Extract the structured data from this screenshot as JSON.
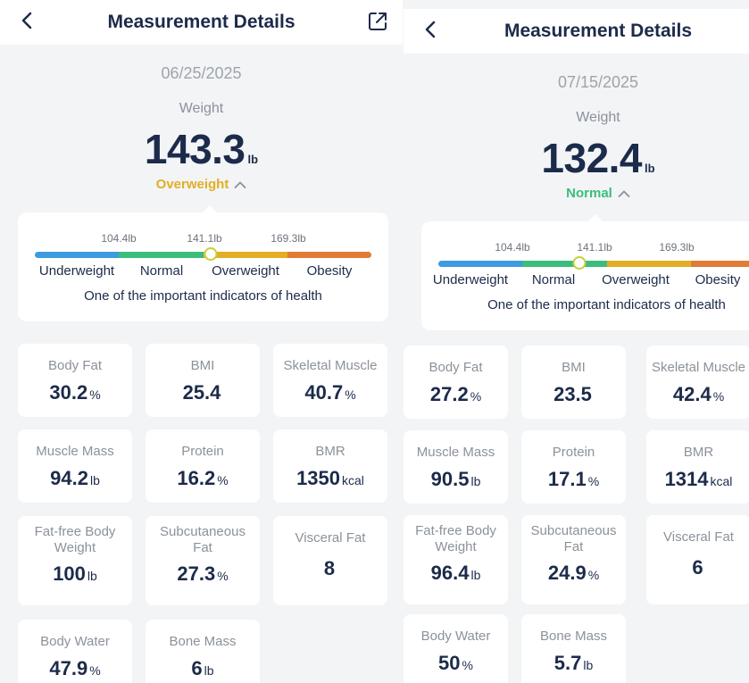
{
  "screens": [
    {
      "header": {
        "title": "Measurement Details",
        "back_icon": "chevron-left-icon",
        "share_icon": "external-link-icon"
      },
      "date": "06/25/2025",
      "weight": {
        "label": "Weight",
        "value": "143.3",
        "unit": "lb"
      },
      "status": {
        "label": "Overweight",
        "color": "#e3ae25",
        "icon": "chevron-up-icon"
      },
      "scale": {
        "thresholds": [
          "104.4lb",
          "141.1lb",
          "169.3lb"
        ],
        "categories": [
          "Underweight",
          "Normal",
          "Overweight",
          "Obesity"
        ],
        "colors": [
          "#3d9be0",
          "#3cbd7c",
          "#e3ae25",
          "#e07c36"
        ],
        "position": 0.523,
        "hint": "One of the important indicators of health"
      },
      "metrics": [
        {
          "label": "Body Fat",
          "value": "30.2",
          "unit": "%"
        },
        {
          "label": "BMI",
          "value": "25.4",
          "unit": ""
        },
        {
          "label": "Skeletal Muscle",
          "value": "40.7",
          "unit": "%"
        },
        {
          "label": "Muscle Mass",
          "value": "94.2",
          "unit": "lb"
        },
        {
          "label": "Protein",
          "value": "16.2",
          "unit": "%"
        },
        {
          "label": "BMR",
          "value": "1350",
          "unit": "kcal"
        },
        {
          "label": "Fat-free Body\nWeight",
          "value": "100",
          "unit": "lb"
        },
        {
          "label": "Subcutaneous\nFat",
          "value": "27.3",
          "unit": "%"
        },
        {
          "label": "Visceral Fat",
          "value": "8",
          "unit": ""
        },
        {
          "label": "Body Water",
          "value": "47.9",
          "unit": "%"
        },
        {
          "label": "Bone Mass",
          "value": "6",
          "unit": "lb"
        }
      ]
    },
    {
      "header": {
        "title": "Measurement Details",
        "back_icon": "chevron-left-icon",
        "share_icon": "external-link-icon"
      },
      "date": "07/15/2025",
      "weight": {
        "label": "Weight",
        "value": "132.4",
        "unit": "lb"
      },
      "status": {
        "label": "Normal",
        "color": "#3cbd7c",
        "icon": "chevron-up-icon"
      },
      "scale": {
        "thresholds": [
          "104.4lb",
          "141.1lb",
          "169.3lb"
        ],
        "categories": [
          "Underweight",
          "Normal",
          "Overweight",
          "Obesity"
        ],
        "colors": [
          "#3d9be0",
          "#3cbd7c",
          "#e3ae25",
          "#e07c36"
        ],
        "position": 0.42,
        "hint": "One of the important indicators of health"
      },
      "metrics": [
        {
          "label": "Body Fat",
          "value": "27.2",
          "unit": "%"
        },
        {
          "label": "BMI",
          "value": "23.5",
          "unit": ""
        },
        {
          "label": "Skeletal Muscle",
          "value": "42.4",
          "unit": "%"
        },
        {
          "label": "Muscle Mass",
          "value": "90.5",
          "unit": "lb"
        },
        {
          "label": "Protein",
          "value": "17.1",
          "unit": "%"
        },
        {
          "label": "BMR",
          "value": "1314",
          "unit": "kcal"
        },
        {
          "label": "Fat-free Body\nWeight",
          "value": "96.4",
          "unit": "lb"
        },
        {
          "label": "Subcutaneous\nFat",
          "value": "24.9",
          "unit": "%"
        },
        {
          "label": "Visceral Fat",
          "value": "6",
          "unit": ""
        },
        {
          "label": "Body Water",
          "value": "50",
          "unit": "%"
        },
        {
          "label": "Bone Mass",
          "value": "5.7",
          "unit": "lb"
        }
      ]
    }
  ]
}
